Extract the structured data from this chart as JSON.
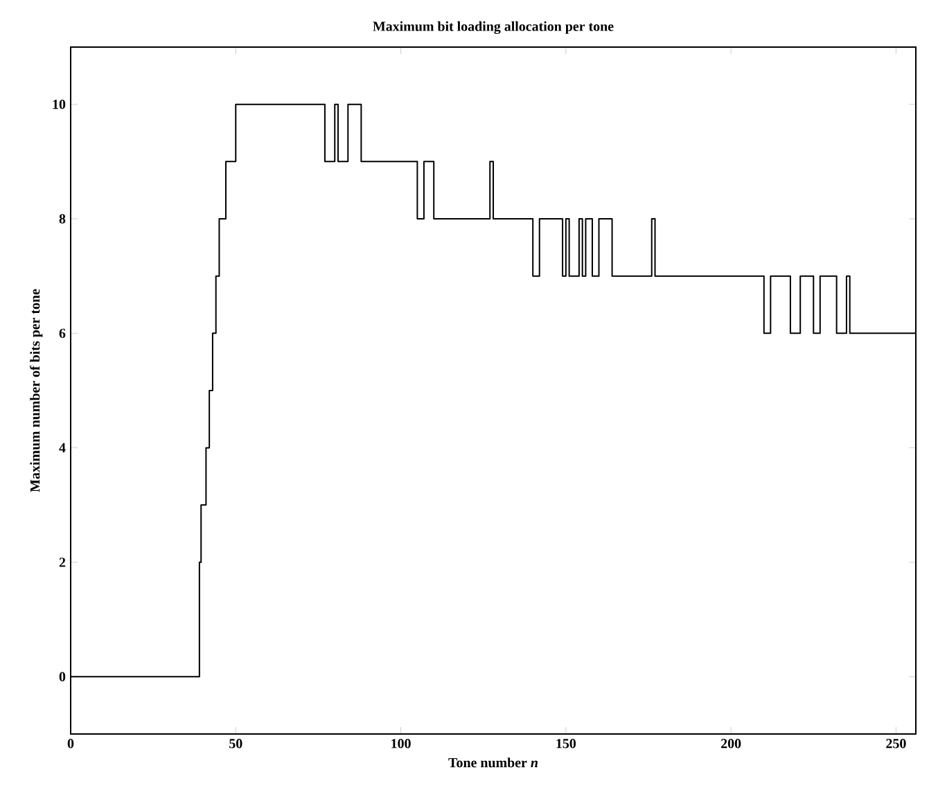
{
  "chart_data": {
    "type": "step",
    "title": "Maximum bit loading allocation per tone",
    "xlabel": "Tone number *n*",
    "ylabel": "Maximum number of bits per tone",
    "x": [
      0,
      39,
      39.5,
      41,
      42,
      43,
      44,
      45,
      47,
      50,
      77,
      80,
      81,
      84,
      88,
      105,
      107,
      110,
      127,
      128,
      140,
      142,
      149,
      150,
      151,
      154,
      155,
      156,
      158,
      160,
      164,
      176,
      177,
      210,
      212,
      218,
      221,
      225,
      227,
      232,
      235,
      236,
      256
    ],
    "values": [
      0,
      2,
      3,
      4,
      5,
      6,
      7,
      8,
      9,
      10,
      9,
      10,
      9,
      10,
      9,
      8,
      9,
      8,
      9,
      8,
      7,
      8,
      7,
      8,
      7,
      8,
      7,
      8,
      7,
      8,
      7,
      8,
      7,
      6,
      7,
      6,
      7,
      6,
      7,
      6,
      7,
      6,
      6
    ],
    "color": "#000000",
    "xlim": [
      0,
      256
    ],
    "ylim": [
      -1,
      11
    ],
    "xticks": [
      0,
      50,
      100,
      150,
      200,
      250
    ],
    "yticks": [
      0,
      2,
      4,
      6,
      8,
      10
    ]
  }
}
